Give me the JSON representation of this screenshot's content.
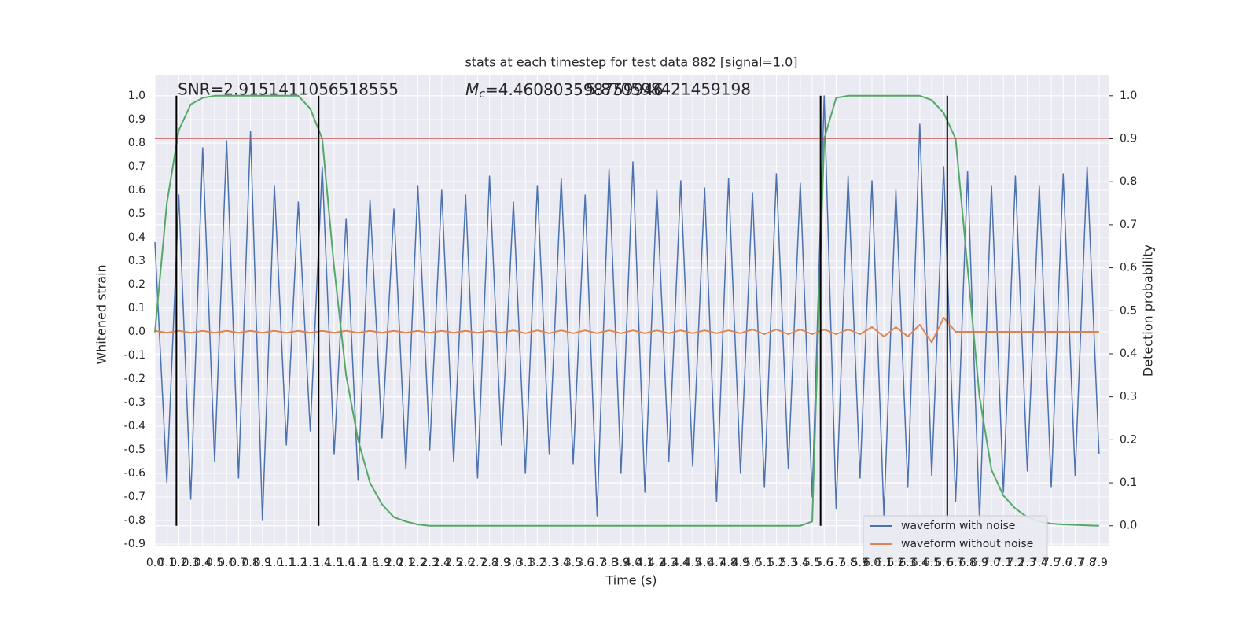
{
  "chart_data": {
    "type": "line",
    "title": "stats at each timestep for test data 882 [signal=1.0]",
    "annotations": {
      "snr": "SNR=2.9151411056518555",
      "mass_symbol": "M",
      "mass_subscript": "c",
      "mass_value": "=4.460803598759946",
      "overlap_value": "5.870598421459198"
    },
    "xlabel": "Time (s)",
    "ylabel": "Whitened strain",
    "y2label": "Detection probability",
    "x": [
      0,
      0.1,
      0.2,
      0.3,
      0.4,
      0.5,
      0.6,
      0.7,
      0.8,
      0.9,
      1,
      1.1,
      1.2,
      1.3,
      1.4,
      1.5,
      1.6,
      1.7,
      1.8,
      1.9,
      2,
      2.1,
      2.2,
      2.3,
      2.4,
      2.5,
      2.6,
      2.7,
      2.8,
      2.9,
      3,
      3.1,
      3.2,
      3.3,
      3.4,
      3.5,
      3.6,
      3.7,
      3.8,
      3.9,
      4,
      4.1,
      4.2,
      4.3,
      4.4,
      4.5,
      4.6,
      4.7,
      4.8,
      4.9,
      5,
      5.1,
      5.2,
      5.3,
      5.4,
      5.5,
      5.6,
      5.7,
      5.8,
      5.9,
      6,
      6.1,
      6.2,
      6.3,
      6.4,
      6.5,
      6.6,
      6.7,
      6.8,
      6.9,
      7,
      7.1,
      7.2,
      7.3,
      7.4,
      7.5,
      7.6,
      7.7,
      7.8,
      7.9
    ],
    "series": [
      {
        "name": "waveform with noise",
        "color": "#4c72b0",
        "values": [
          0.38,
          -0.64,
          0.58,
          -0.71,
          0.78,
          -0.55,
          0.81,
          -0.62,
          0.85,
          -0.8,
          0.62,
          -0.48,
          0.55,
          -0.42,
          0.7,
          -0.52,
          0.48,
          -0.63,
          0.56,
          -0.45,
          0.52,
          -0.58,
          0.62,
          -0.5,
          0.6,
          -0.55,
          0.58,
          -0.62,
          0.66,
          -0.48,
          0.55,
          -0.6,
          0.62,
          -0.52,
          0.65,
          -0.56,
          0.58,
          -0.78,
          0.69,
          -0.6,
          0.72,
          -0.68,
          0.6,
          -0.55,
          0.64,
          -0.57,
          0.61,
          -0.72,
          0.65,
          -0.6,
          0.59,
          -0.66,
          0.67,
          -0.58,
          0.63,
          -0.7,
          1.0,
          -0.75,
          0.66,
          -0.62,
          0.64,
          -0.78,
          0.6,
          -0.66,
          0.88,
          -0.61,
          0.7,
          -0.72,
          0.68,
          -0.8,
          0.62,
          -0.68,
          0.66,
          -0.59,
          0.62,
          -0.66,
          0.67,
          -0.61,
          0.7,
          -0.52
        ]
      },
      {
        "name": "waveform without noise",
        "color": "#dd8452",
        "values": [
          0.004,
          -0.004,
          0.004,
          -0.004,
          0.004,
          -0.004,
          0.004,
          -0.004,
          0.004,
          -0.004,
          0.004,
          -0.004,
          0.004,
          -0.004,
          0.004,
          -0.004,
          0.004,
          -0.004,
          0.004,
          -0.004,
          0.004,
          -0.004,
          0.004,
          -0.004,
          0.004,
          -0.004,
          0.004,
          -0.004,
          0.004,
          -0.004,
          0.006,
          -0.006,
          0.006,
          -0.006,
          0.006,
          -0.006,
          0.006,
          -0.006,
          0.006,
          -0.006,
          0.006,
          -0.006,
          0.006,
          -0.006,
          0.006,
          -0.006,
          0.006,
          -0.006,
          0.006,
          -0.006,
          0.01,
          -0.01,
          0.01,
          -0.01,
          0.01,
          -0.01,
          0.01,
          -0.01,
          0.01,
          -0.01,
          0.02,
          -0.02,
          0.02,
          -0.02,
          0.03,
          -0.045,
          0.06,
          0,
          0,
          0,
          0,
          0,
          0,
          0,
          0,
          0,
          0,
          0,
          0,
          0
        ]
      },
      {
        "color": "#55a868",
        "axis": "y2",
        "values": [
          0.45,
          0.75,
          0.92,
          0.98,
          0.995,
          1.0,
          1.0,
          1.0,
          1.0,
          1.0,
          1.0,
          1.0,
          1.0,
          0.97,
          0.9,
          0.6,
          0.35,
          0.2,
          0.1,
          0.05,
          0.02,
          0.01,
          0.003,
          0,
          0,
          0,
          0,
          0,
          0,
          0,
          0,
          0,
          0,
          0,
          0,
          0,
          0,
          0,
          0,
          0,
          0,
          0,
          0,
          0,
          0,
          0,
          0,
          0,
          0,
          0,
          0,
          0,
          0,
          0,
          0,
          0.01,
          0.9,
          0.995,
          1.0,
          1.0,
          1.0,
          1.0,
          1.0,
          1.0,
          1.0,
          0.99,
          0.96,
          0.9,
          0.6,
          0.3,
          0.13,
          0.07,
          0.04,
          0.02,
          0.01,
          0.005,
          0.003,
          0.002,
          0.001,
          0
        ]
      }
    ],
    "hline": 0.82,
    "hline_color": "#c44e52",
    "vlines": [
      0.18,
      1.37,
      5.57,
      6.63
    ],
    "vline_color": "#000000",
    "xlim": [
      0,
      7.98
    ],
    "ylim": [
      -0.91,
      1.09
    ],
    "y2lim": [
      -0.048,
      1.049
    ],
    "xticks": [
      {
        "value": 0,
        "label": "0.0"
      },
      0.1,
      0.2,
      0.3,
      0.4,
      0.5,
      0.6,
      0.7,
      0.8,
      0.9,
      {
        "value": 1,
        "label": "1.0"
      },
      1.1,
      1.2,
      1.3,
      1.4,
      1.5,
      1.6,
      1.7,
      1.8,
      1.9,
      {
        "value": 2,
        "label": "2.0"
      },
      2.1,
      2.2,
      2.3,
      2.4,
      2.5,
      2.6,
      2.7,
      2.8,
      2.9,
      {
        "value": 3,
        "label": "3.0"
      },
      3.1,
      3.2,
      3.3,
      3.4,
      3.5,
      3.6,
      3.7,
      3.8,
      3.9,
      {
        "value": 4,
        "label": "4.0"
      },
      4.1,
      4.2,
      4.3,
      4.4,
      4.5,
      4.6,
      4.7,
      4.8,
      4.9,
      {
        "value": 5,
        "label": "5.0"
      },
      5.1,
      5.2,
      5.3,
      5.4,
      5.5,
      5.6,
      5.7,
      5.8,
      5.9,
      {
        "value": 6,
        "label": "6.0"
      },
      6.1,
      6.2,
      6.3,
      6.4,
      6.5,
      6.6,
      6.7,
      6.8,
      6.9,
      {
        "value": 7,
        "label": "7.0"
      },
      7.1,
      7.2,
      7.3,
      7.4,
      7.5,
      7.6,
      7.7,
      7.8,
      7.9
    ],
    "yticks": [
      -0.9,
      -0.8,
      -0.7,
      -0.6,
      -0.5,
      -0.4,
      -0.3,
      -0.2,
      -0.1,
      {
        "value": 0,
        "label": "0.0"
      },
      0.1,
      0.2,
      0.3,
      0.4,
      0.5,
      0.6,
      0.7,
      0.8,
      0.9,
      {
        "value": 1,
        "label": "1.0"
      }
    ],
    "y2ticks": [
      {
        "value": 0,
        "label": "0.0"
      },
      0.1,
      0.2,
      0.3,
      0.4,
      0.5,
      0.6,
      0.7,
      0.8,
      0.9,
      {
        "value": 1,
        "label": "1.0"
      }
    ],
    "grid": true,
    "legend_position": "lower right"
  }
}
